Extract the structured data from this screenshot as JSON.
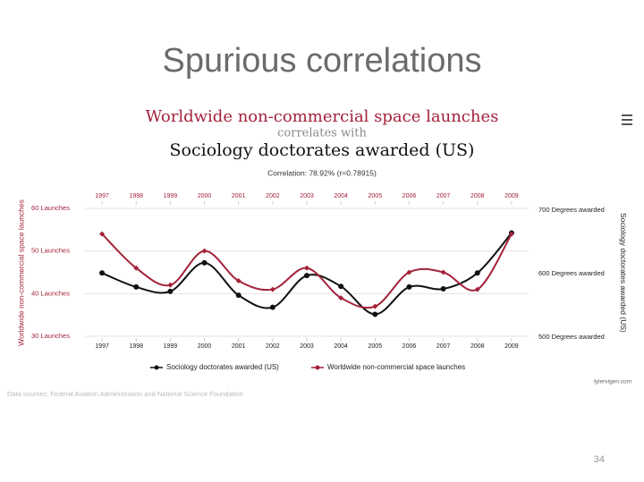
{
  "slide": {
    "title": "Spurious correlations",
    "page_number": "34"
  },
  "chart_data": {
    "type": "line",
    "title": "Worldwide non-commercial space launches",
    "connector": "correlates with",
    "subtitle": "Sociology doctorates awarded (US)",
    "annotation": "Correlation: 78.92% (r=0.78915)",
    "ylabel": "Worldwide non-commercial space launches",
    "y2label": "Sociology doctorates awarded (US)",
    "source": "Data sources: Federal Aviation Administration and National Science Foundation",
    "credit": "tylervigen.com",
    "categories": [
      "1997",
      "1998",
      "1999",
      "2000",
      "2001",
      "2002",
      "2003",
      "2004",
      "2005",
      "2006",
      "2007",
      "2008",
      "2009"
    ],
    "series": [
      {
        "name": "Sociology doctorates awarded (US)",
        "color": "#111111",
        "axis": "y2",
        "values": [
          601,
          579,
          572,
          617,
          566,
          547,
          597,
          580,
          536,
          579,
          576,
          601,
          664
        ]
      },
      {
        "name": "Worldwide non-commercial space launches",
        "color": "#a3223a",
        "values": [
          54,
          46,
          42,
          50,
          43,
          41,
          46,
          39,
          37,
          45,
          45,
          41,
          54
        ]
      }
    ],
    "ylim": [
      30,
      60
    ],
    "yticks": [
      {
        "value": 30,
        "label": "30 Launches"
      },
      {
        "value": 40,
        "label": "40 Launches"
      },
      {
        "value": 50,
        "label": "50 Launches"
      },
      {
        "value": 60,
        "label": "60 Launches"
      }
    ],
    "y2lim": [
      500,
      700
    ],
    "y2ticks": [
      {
        "value": 500,
        "label": "500 Degrees awarded"
      },
      {
        "value": 600,
        "label": "600 Degrees awarded"
      },
      {
        "value": 700,
        "label": "700 Degrees awarded"
      }
    ],
    "grid": true
  }
}
